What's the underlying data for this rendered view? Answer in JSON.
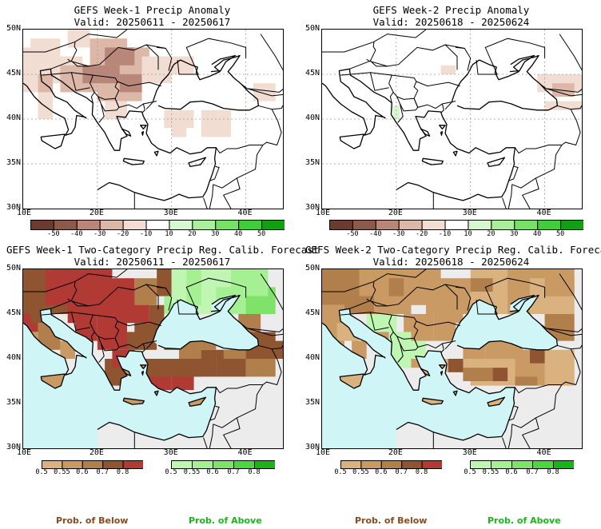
{
  "colors": {
    "sea": "#cff5f7",
    "land": "#ececec",
    "border": "#000000",
    "below": [
      "#d9b27f",
      "#c99a63",
      "#b17f4c",
      "#8f5531",
      "#b13a35"
    ],
    "above": [
      "#bff7b2",
      "#a4f093",
      "#7fe36a",
      "#4fd443",
      "#1bb31b"
    ],
    "anom": [
      "#6b3b2f",
      "#8c5a49",
      "#b8877a",
      "#ddb8a8",
      "#f2ddd2",
      "#ffffff",
      "#d8f7d0",
      "#aaf09a",
      "#75e165",
      "#3ecf36",
      "#12a012"
    ],
    "prob_below_label": "#8a4a1e",
    "prob_above_label": "#18b818"
  },
  "panels": [
    {
      "id": "w1-anom",
      "title1": "GEFS Week-1 Precip Anomaly",
      "title2": "Valid: 20250611 - 20250617"
    },
    {
      "id": "w2-anom",
      "title1": "GEFS Week-2 Precip Anomaly",
      "title2": "Valid: 20250618 - 20250624"
    },
    {
      "id": "w1-prob",
      "title1": "GEFS Week-1 Two-Category Precip Reg. Calib. Forecast",
      "title2": "Valid: 20250611 - 20250617"
    },
    {
      "id": "w2-prob",
      "title1": "GEFS Week-2 Two-Category Precip Reg. Calib. Forecast",
      "title2": "Valid: 20250618 - 20250624"
    }
  ],
  "axes": {
    "lat_labels": [
      "50N",
      "45N",
      "40N",
      "35N",
      "30N"
    ],
    "lon_labels": [
      "10E",
      "20E",
      "30E",
      "40E"
    ]
  },
  "anomaly_colorbar": {
    "labels": [
      "-50",
      "-40",
      "-30",
      "-20",
      "-10",
      "10",
      "20",
      "30",
      "40",
      "50"
    ]
  },
  "prob_colorbar": {
    "labels": [
      "0.5",
      "0.55",
      "0.6",
      "0.7",
      "0.8"
    ]
  },
  "legend": {
    "below": "Prob. of Below",
    "above": "Prob. of Above"
  }
}
